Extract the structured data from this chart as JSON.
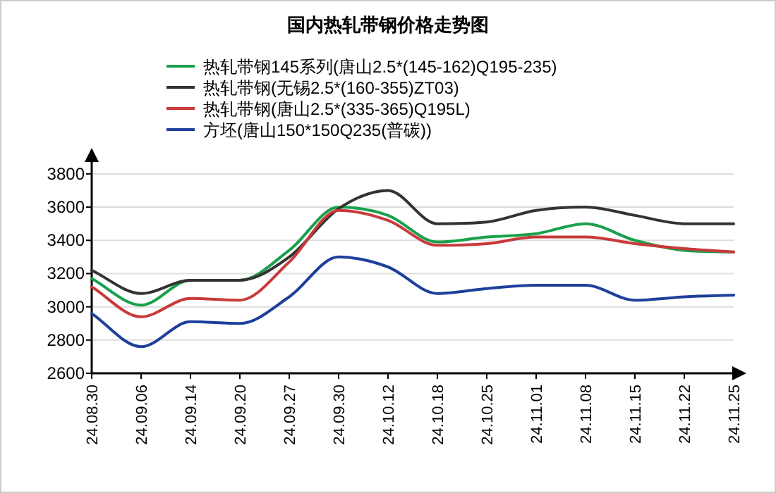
{
  "chart_data": {
    "type": "line",
    "title": "国内热轧带钢价格走势图",
    "categories": [
      "24.08.30",
      "24.09.06",
      "24.09.14",
      "24.09.20",
      "24.09.27",
      "24.09.30",
      "24.10.12",
      "24.10.18",
      "24.10.25",
      "24.11.01",
      "24.11.08",
      "24.11.15",
      "24.11.22",
      "24.11.25"
    ],
    "series": [
      {
        "name": "热轧带钢145系列(唐山2.5*(145-162)Q195-235)",
        "color": "#19a04b",
        "values": [
          3170,
          3010,
          3160,
          3160,
          3340,
          3600,
          3550,
          3390,
          3420,
          3440,
          3500,
          3400,
          3340,
          3330
        ]
      },
      {
        "name": "热轧带钢(无锡2.5*(160-355)ZT03)",
        "color": "#333333",
        "values": [
          3220,
          3080,
          3160,
          3160,
          3300,
          3590,
          3700,
          3500,
          3510,
          3580,
          3600,
          3550,
          3500,
          3500
        ]
      },
      {
        "name": "热轧带钢(唐山2.5*(335-365)Q195L)",
        "color": "#c83a3a",
        "values": [
          3120,
          2940,
          3050,
          3040,
          3270,
          3580,
          3520,
          3370,
          3380,
          3420,
          3420,
          3380,
          3350,
          3330
        ]
      },
      {
        "name": "方坯(唐山150*150Q235(普碳))",
        "color": "#1f3f9c",
        "values": [
          2960,
          2760,
          2910,
          2900,
          3060,
          3300,
          3240,
          3080,
          3110,
          3130,
          3130,
          3040,
          3060,
          3070
        ]
      }
    ],
    "ylim": [
      2600,
      3880
    ],
    "yticks": [
      2600,
      2800,
      3000,
      3200,
      3400,
      3600,
      3800
    ],
    "grid": "y",
    "legend": "top",
    "marker": "none",
    "line_style": "solid"
  }
}
